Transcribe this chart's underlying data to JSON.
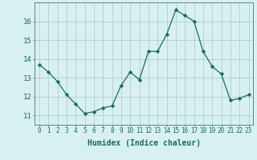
{
  "x": [
    0,
    1,
    2,
    3,
    4,
    5,
    6,
    7,
    8,
    9,
    10,
    11,
    12,
    13,
    14,
    15,
    16,
    17,
    18,
    19,
    20,
    21,
    22,
    23
  ],
  "y": [
    13.7,
    13.3,
    12.8,
    12.1,
    11.6,
    11.1,
    11.2,
    11.4,
    11.5,
    12.6,
    13.3,
    12.9,
    14.4,
    14.4,
    15.3,
    16.6,
    16.3,
    16.0,
    14.4,
    13.6,
    13.2,
    11.8,
    11.9,
    12.1
  ],
  "line_color": "#1a6b5a",
  "marker": "D",
  "marker_size": 2.2,
  "bg_color": "#d8f0f0",
  "grid_color": "#b0cece",
  "xlabel": "Humidex (Indice chaleur)",
  "ylim": [
    10.5,
    17.0
  ],
  "xlim": [
    -0.5,
    23.5
  ],
  "yticks": [
    11,
    12,
    13,
    14,
    15,
    16
  ],
  "xticks": [
    0,
    1,
    2,
    3,
    4,
    5,
    6,
    7,
    8,
    9,
    10,
    11,
    12,
    13,
    14,
    15,
    16,
    17,
    18,
    19,
    20,
    21,
    22,
    23
  ],
  "xtick_labels": [
    "0",
    "1",
    "2",
    "3",
    "4",
    "5",
    "6",
    "7",
    "8",
    "9",
    "10",
    "11",
    "12",
    "13",
    "14",
    "15",
    "16",
    "17",
    "18",
    "19",
    "20",
    "21",
    "22",
    "23"
  ],
  "tick_color": "#1a6b5a",
  "xtick_fontsize": 5.5,
  "ytick_fontsize": 6.5,
  "xlabel_fontsize": 7.0,
  "axis_color": "#5a8a8a",
  "linewidth": 0.9
}
